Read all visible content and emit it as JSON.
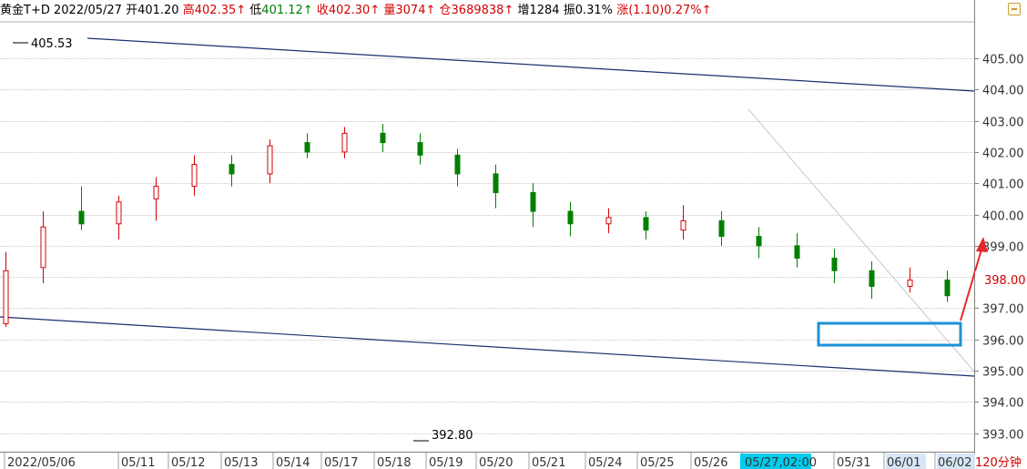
{
  "header": {
    "symbol": "黄金T+D",
    "date": "2022/05/27",
    "open_label": "开",
    "open_value": "401.20",
    "high_label": "高",
    "high_value": "402.35↑",
    "low_label": "低",
    "low_value": "401.12↑",
    "close_label": "收",
    "close_value": "402.30↑",
    "volume_label": "量",
    "volume_value": "3074↑",
    "oi_label": "仓",
    "oi_value": "3689838↑",
    "increase_label": "增",
    "increase_value": "1284",
    "amplitude_label": "振",
    "amplitude_value": "0.31%",
    "change_label": "涨",
    "change_value": "(1.10)0.27%↑"
  },
  "colors": {
    "up": "#d40000",
    "down": "#008000",
    "trendline": "#1c2f6e",
    "highlight_box": "#1e90d8",
    "arrow": "#e8262a",
    "grid": "#c8c8c8",
    "axis_highlight": "#00ccee"
  },
  "chart_data": {
    "type": "candlestick",
    "ylim": [
      392.8,
      405.9
    ],
    "y_ticks": [
      "405.00",
      "404.00",
      "403.00",
      "402.00",
      "401.00",
      "400.00",
      "399.00",
      "398.00",
      "397.00",
      "396.00",
      "395.00",
      "394.00",
      "393.00"
    ],
    "x_labels": [
      "2022/05/06",
      "05/11",
      "05/12",
      "05/13",
      "05/14",
      "05/17",
      "05/18",
      "05/19",
      "05/20",
      "05/21",
      "05/24",
      "05/25",
      "05/26",
      "05/27,02:00",
      "05/31",
      "06/01",
      "06/02"
    ],
    "period_label": "120分钟",
    "current_price_label": "398.00",
    "annotations": {
      "max": "405.53",
      "min": "392.80"
    },
    "candles": [
      {
        "o": 396.5,
        "c": 398.2,
        "h": 398.8,
        "l": 396.4
      },
      {
        "o": 398.3,
        "c": 399.6,
        "h": 400.1,
        "l": 397.8
      },
      {
        "o": 400.1,
        "c": 399.7,
        "h": 400.9,
        "l": 399.5
      },
      {
        "o": 399.7,
        "c": 400.4,
        "h": 400.6,
        "l": 399.2
      },
      {
        "o": 400.5,
        "c": 400.9,
        "h": 401.2,
        "l": 399.8
      },
      {
        "o": 400.9,
        "c": 401.6,
        "h": 401.9,
        "l": 400.6
      },
      {
        "o": 401.6,
        "c": 401.3,
        "h": 401.9,
        "l": 400.9
      },
      {
        "o": 401.3,
        "c": 402.2,
        "h": 402.4,
        "l": 401.0
      },
      {
        "o": 402.3,
        "c": 402.0,
        "h": 402.6,
        "l": 401.8
      },
      {
        "o": 402.0,
        "c": 402.6,
        "h": 402.8,
        "l": 401.8
      },
      {
        "o": 402.6,
        "c": 402.3,
        "h": 402.9,
        "l": 402.0
      },
      {
        "o": 402.3,
        "c": 401.9,
        "h": 402.6,
        "l": 401.6
      },
      {
        "o": 401.9,
        "c": 401.3,
        "h": 402.1,
        "l": 400.9
      },
      {
        "o": 401.3,
        "c": 400.7,
        "h": 401.6,
        "l": 400.2
      },
      {
        "o": 400.7,
        "c": 400.1,
        "h": 401.0,
        "l": 399.6
      },
      {
        "o": 400.1,
        "c": 399.7,
        "h": 400.4,
        "l": 399.3
      },
      {
        "o": 399.7,
        "c": 399.9,
        "h": 400.2,
        "l": 399.4
      },
      {
        "o": 399.9,
        "c": 399.5,
        "h": 400.1,
        "l": 399.2
      },
      {
        "o": 399.5,
        "c": 399.8,
        "h": 400.3,
        "l": 399.2
      },
      {
        "o": 399.8,
        "c": 399.3,
        "h": 400.1,
        "l": 399.0
      },
      {
        "o": 399.3,
        "c": 399.0,
        "h": 399.6,
        "l": 398.6
      },
      {
        "o": 399.0,
        "c": 398.6,
        "h": 399.4,
        "l": 398.3
      },
      {
        "o": 398.6,
        "c": 398.2,
        "h": 398.9,
        "l": 397.8
      },
      {
        "o": 398.2,
        "c": 397.7,
        "h": 398.5,
        "l": 397.3
      },
      {
        "o": 397.7,
        "c": 397.9,
        "h": 398.3,
        "l": 397.5
      },
      {
        "o": 397.9,
        "c": 397.4,
        "h": 398.2,
        "l": 397.2
      }
    ]
  }
}
